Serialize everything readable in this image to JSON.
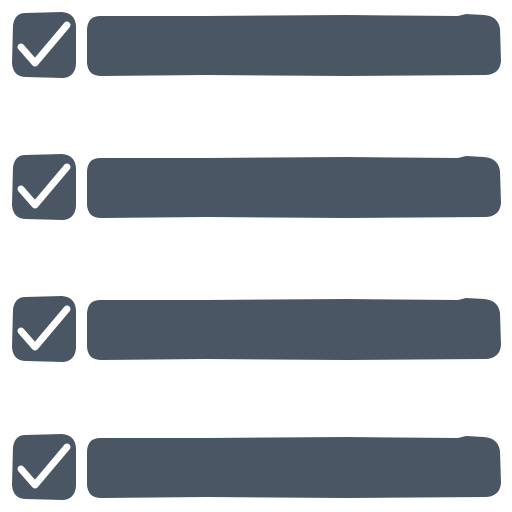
{
  "icon": {
    "name": "checklist-icon",
    "fill_color": "#4a5663",
    "check_color": "#ffffff"
  },
  "items": [
    {
      "checked": true,
      "checkbox_icon": "checkbox-checked-icon"
    },
    {
      "checked": true,
      "checkbox_icon": "checkbox-checked-icon"
    },
    {
      "checked": true,
      "checkbox_icon": "checkbox-checked-icon"
    },
    {
      "checked": true,
      "checkbox_icon": "checkbox-checked-icon"
    }
  ]
}
